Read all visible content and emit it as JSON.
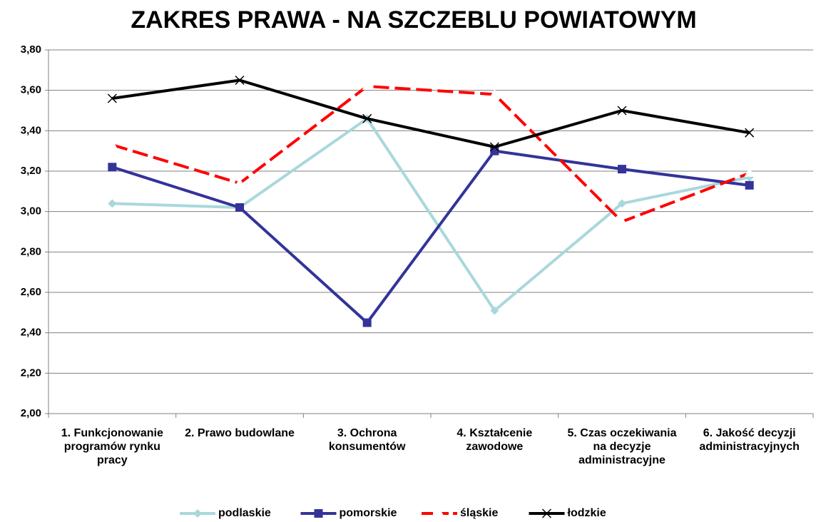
{
  "chart_data": {
    "type": "line",
    "title": "ZAKRES PRAWA - NA SZCZEBLU POWIATOWYM",
    "categories": [
      "1. Funkcjonowanie programów rynku pracy",
      "2. Prawo budowlane",
      "3. Ochrona konsumentów",
      "4. Kształcenie zawodowe",
      "5. Czas oczekiwania na decyzje administracyjne",
      "6. Jakość decyzji administracyjnych"
    ],
    "series": [
      {
        "name": "podlaskie",
        "color": "#a9d8dc",
        "marker": "diamond",
        "dash": false,
        "values": [
          3.04,
          3.02,
          3.46,
          2.51,
          3.04,
          3.17
        ]
      },
      {
        "name": "pomorskie",
        "color": "#333399",
        "marker": "square",
        "dash": false,
        "values": [
          3.22,
          3.02,
          2.45,
          3.3,
          3.21,
          3.13
        ]
      },
      {
        "name": "śląskie",
        "color": "#ff0000",
        "marker": "triangle",
        "dash": true,
        "values": [
          3.33,
          3.14,
          3.62,
          3.58,
          2.95,
          3.19
        ]
      },
      {
        "name": "łodzkie",
        "color": "#000000",
        "marker": "x",
        "dash": false,
        "values": [
          3.56,
          3.65,
          3.46,
          3.32,
          3.5,
          3.39
        ]
      }
    ],
    "ylim": [
      2.0,
      3.8
    ],
    "yticks": [
      {
        "value": 2.0,
        "label": "2,00"
      },
      {
        "value": 2.2,
        "label": "2,20"
      },
      {
        "value": 2.4,
        "label": "2,40"
      },
      {
        "value": 2.6,
        "label": "2,60"
      },
      {
        "value": 2.8,
        "label": "2,80"
      },
      {
        "value": 3.0,
        "label": "3,00"
      },
      {
        "value": 3.2,
        "label": "3,20"
      },
      {
        "value": 3.4,
        "label": "3,40"
      },
      {
        "value": 3.6,
        "label": "3,60"
      },
      {
        "value": 3.8,
        "label": "3,80"
      }
    ],
    "grid": true,
    "legend": "bottom"
  }
}
